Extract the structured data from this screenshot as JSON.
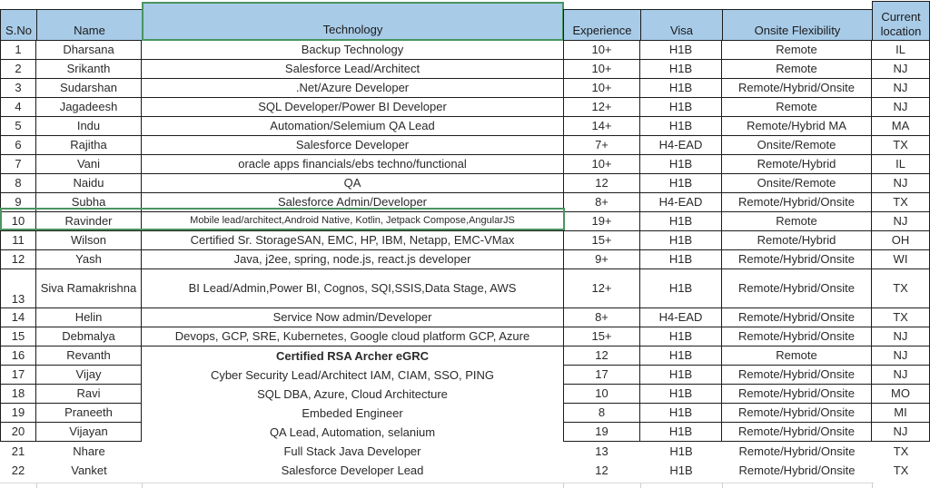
{
  "colors": {
    "header_fill": "#a8cbe8",
    "grid_line": "#1c1c1c",
    "selection_green": "#4a9460",
    "text": "#2a2a2a"
  },
  "table": {
    "columns": [
      {
        "key": "s_no",
        "label": "S.No"
      },
      {
        "key": "name",
        "label": "Name"
      },
      {
        "key": "technology",
        "label": "Technology"
      },
      {
        "key": "experience",
        "label": "Experience"
      },
      {
        "key": "visa",
        "label": "Visa"
      },
      {
        "key": "onsite",
        "label": "Onsite Flexibility"
      },
      {
        "key": "location",
        "label": "Current location"
      }
    ],
    "rows": [
      {
        "s_no": "1",
        "name": "Dharsana",
        "technology": "Backup Technology",
        "experience": "10+",
        "visa": "H1B",
        "onsite": "Remote",
        "location": "IL"
      },
      {
        "s_no": "2",
        "name": "Srikanth",
        "technology": "Salesforce Lead/Architect",
        "experience": "10+",
        "visa": "H1B",
        "onsite": "Remote",
        "location": "NJ"
      },
      {
        "s_no": "3",
        "name": "Sudarshan",
        "technology": ".Net/Azure Developer",
        "experience": "10+",
        "visa": "H1B",
        "onsite": "Remote/Hybrid/Onsite",
        "location": "NJ"
      },
      {
        "s_no": "4",
        "name": "Jagadeesh",
        "technology": "SQL Developer/Power BI Developer",
        "experience": "12+",
        "visa": "H1B",
        "onsite": "Remote",
        "location": "NJ"
      },
      {
        "s_no": "5",
        "name": "Indu",
        "technology": "Automation/Selemium QA Lead",
        "experience": "14+",
        "visa": "H1B",
        "onsite": "Remote/Hybrid MA",
        "location": "MA"
      },
      {
        "s_no": "6",
        "name": "Rajitha",
        "technology": "Salesforce Developer",
        "experience": "7+",
        "visa": "H4-EAD",
        "onsite": "Onsite/Remote",
        "location": "TX"
      },
      {
        "s_no": "7",
        "name": "Vani",
        "technology": "oracle apps financials/ebs techno/functional",
        "experience": "10+",
        "visa": "H1B",
        "onsite": "Remote/Hybrid",
        "location": "IL"
      },
      {
        "s_no": "8",
        "name": "Naidu",
        "technology": "QA",
        "experience": "12",
        "visa": "H1B",
        "onsite": "Onsite/Remote",
        "location": "NJ"
      },
      {
        "s_no": "9",
        "name": "Subha",
        "technology": "Salesforce Admin/Developer",
        "experience": "8+",
        "visa": "H4-EAD",
        "onsite": "Remote/Hybrid/Onsite",
        "location": "TX"
      },
      {
        "s_no": "10",
        "name": "Ravinder",
        "technology": "Mobile lead/architect,Android Native, Kotlin, Jetpack Compose,AngularJS",
        "experience": "19+",
        "visa": "H1B",
        "onsite": "Remote",
        "location": "NJ",
        "tech_small": true
      },
      {
        "s_no": "11",
        "name": "Wilson",
        "technology": "Certified Sr. StorageSAN, EMC, HP, IBM, Netapp, EMC-VMax",
        "experience": "15+",
        "visa": "H1B",
        "onsite": "Remote/Hybrid",
        "location": "OH"
      },
      {
        "s_no": "12",
        "name": "Yash",
        "technology": "Java, j2ee, spring, node.js, react.js developer",
        "experience": "9+",
        "visa": "H1B",
        "onsite": "Remote/Hybrid/Onsite",
        "location": "WI",
        "selected": true
      },
      {
        "s_no": "13",
        "name": "Siva Ramakrishna",
        "technology": "BI Lead/Admin,Power BI, Cognos, SQI,SSIS,Data Stage, AWS",
        "experience": "12+",
        "visa": "H1B",
        "onsite": "Remote/Hybrid/Onsite",
        "location": "TX",
        "tall": true
      },
      {
        "s_no": "14",
        "name": "Helin",
        "technology": "Service Now admin/Developer",
        "experience": "8+",
        "visa": "H4-EAD",
        "onsite": "Remote/Hybrid/Onsite",
        "location": "TX"
      },
      {
        "s_no": "15",
        "name": "Debmalya",
        "technology": "Devops, GCP, SRE, Kubernetes, Google cloud platform GCP, Azure",
        "experience": "15+",
        "visa": "H1B",
        "onsite": "Remote/Hybrid/Onsite",
        "location": "NJ"
      },
      {
        "s_no": "16",
        "name": "Revanth",
        "technology": "Certified RSA Archer eGRC",
        "experience": "12",
        "visa": "H1B",
        "onsite": "Remote",
        "location": "NJ",
        "tech_bold": true
      },
      {
        "s_no": "17",
        "name": "Vijay",
        "technology": "Cyber Security Lead/Architect IAM, CIAM, SSO, PING",
        "experience": "17",
        "visa": "H1B",
        "onsite": "Remote/Hybrid/Onsite",
        "location": "NJ"
      },
      {
        "s_no": "18",
        "name": "Ravi",
        "technology": "SQL DBA, Azure, Cloud Architecture",
        "experience": "10",
        "visa": "H1B",
        "onsite": "Remote/Hybrid/Onsite",
        "location": "MO"
      },
      {
        "s_no": "19",
        "name": "Praneeth",
        "technology": "Embeded Engineer",
        "experience": "8",
        "visa": "H1B",
        "onsite": "Remote/Hybrid/Onsite",
        "location": "MI"
      },
      {
        "s_no": "20",
        "name": "Vijayan",
        "technology": "QA Lead, Automation, selanium",
        "experience": "19",
        "visa": "H1B",
        "onsite": "Remote/Hybrid/Onsite",
        "location": "NJ"
      },
      {
        "s_no": "21",
        "name": "Nhare",
        "technology": "Full Stack Java Developer",
        "experience": "13",
        "visa": "H1B",
        "onsite": "Remote/Hybrid/Onsite",
        "location": "TX"
      },
      {
        "s_no": "22",
        "name": "Vanket",
        "technology": "Salesforce Developer Lead",
        "experience": "12",
        "visa": "H1B",
        "onsite": "Remote/Hybrid/Onsite",
        "location": "TX"
      }
    ]
  },
  "selection": {
    "selected_row_s_no": "12",
    "selected_header": "Technology"
  }
}
